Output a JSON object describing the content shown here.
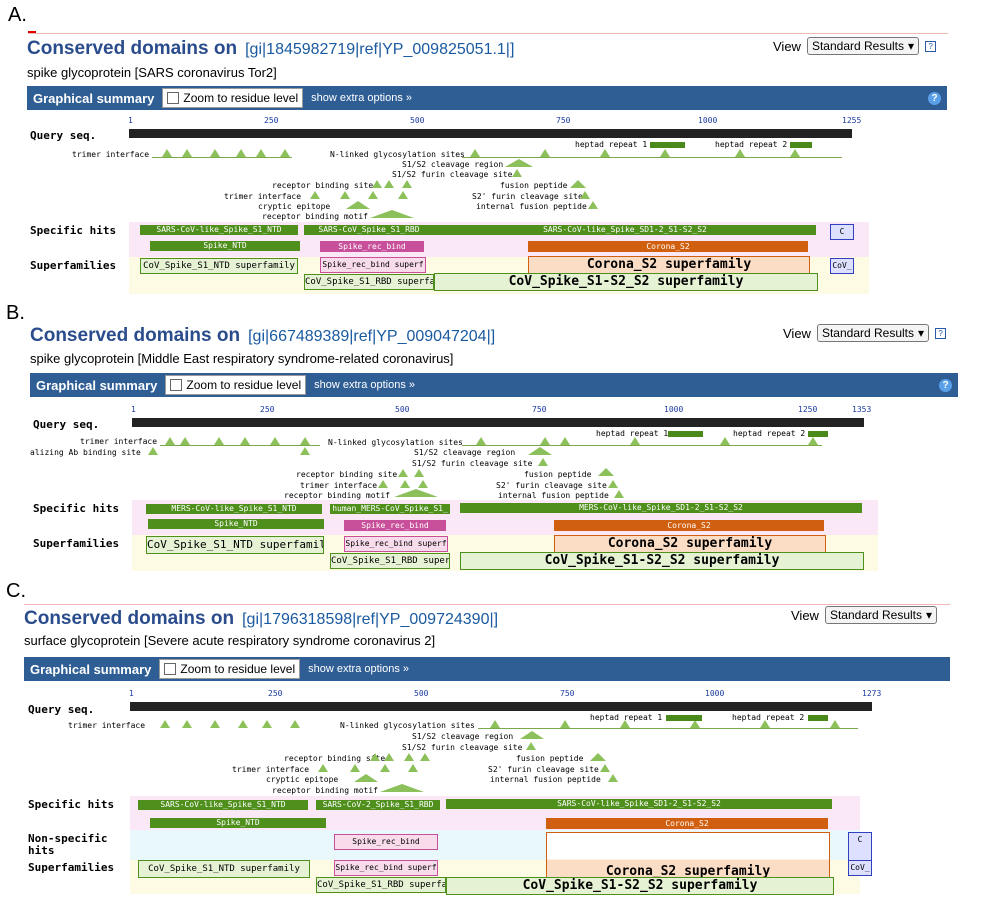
{
  "panels": [
    {
      "label": "A.",
      "title": "Conserved domains on",
      "gi": "[gi|1845982719|ref|YP_009825051.1|]",
      "subtitle": "spike glycoprotein [SARS coronavirus Tor2]",
      "view_label": "View",
      "view_value": "Standard Results",
      "graph_title": "Graphical summary",
      "zoom_label": "Zoom to residue level",
      "extra_label": "show extra options »",
      "query_label": "Query seq.",
      "ticks": [
        "1",
        "250",
        "500",
        "750",
        "1000",
        "1255"
      ],
      "specific_label": "Specific hits",
      "superfamilies_label": "Superfamilies",
      "features": {
        "trimer": "trimer interface",
        "nlinked": "N-linked glycosylation sites",
        "heptad1": "heptad repeat 1",
        "heptad2": "heptad repeat 2",
        "s1s2": "S1/S2 cleavage region",
        "furin": "S1/S2 furin cleavage site",
        "rbs": "receptor binding site",
        "fusion": "fusion peptide",
        "trimer2": "trimer interface",
        "s2p": "S2' furin cleavage site",
        "cryptic": "cryptic epitope",
        "internal": "internal fusion peptide",
        "rbm": "receptor binding motif"
      },
      "hits": {
        "ntd": "SARS-CoV-like_Spike_S1_NTD",
        "ntd2": "Spike_NTD",
        "rbd": "SARS-CoV_Spike_S1_RBD",
        "rec": "Spike_rec_bind",
        "sd": "SARS-CoV-like_Spike_SD1-2_S1-S2_S2",
        "corona": "Corona_S2",
        "c": "C"
      },
      "supers": {
        "ntdsf": "CoV_Spike_S1_NTD superfamily",
        "recsf": "Spike_rec_bind superf",
        "rbdsf": "CoV_Spike_S1_RBD superfami",
        "corsf": "Corona_S2 superfamily",
        "s2sf": "CoV_Spike_S1-S2_S2 superfamily",
        "cov": "CoV_"
      }
    },
    {
      "label": "B.",
      "title": "Conserved domains on",
      "gi": "[gi|667489389|ref|YP_009047204|]",
      "subtitle": "spike glycoprotein [Middle East respiratory syndrome-related coronavirus]",
      "view_label": "View",
      "view_value": "Standard Results",
      "graph_title": "Graphical summary",
      "zoom_label": "Zoom to residue level",
      "extra_label": "show extra options »",
      "query_label": "Query seq.",
      "ticks": [
        "1",
        "250",
        "500",
        "750",
        "1000",
        "1250",
        "1353"
      ],
      "specific_label": "Specific hits",
      "superfamilies_label": "Superfamilies",
      "features": {
        "trimer": "trimer interface",
        "nab": "alizing Ab binding site",
        "nlinked": "N-linked glycosylation sites",
        "heptad1": "heptad repeat 1",
        "heptad2": "heptad repeat 2",
        "s1s2": "S1/S2 cleavage region",
        "furin": "S1/S2 furin cleavage site",
        "rbs": "receptor binding site",
        "fusion": "fusion peptide",
        "trimer2": "trimer interface",
        "s2p": "S2' furin cleavage site",
        "rbm": "receptor binding motif",
        "internal": "internal fusion peptide"
      },
      "hits": {
        "ntd": "MERS-CoV-like_Spike_S1_NTD",
        "ntd2": "Spike_NTD",
        "rbd": "human_MERS-CoV_Spike_S1_",
        "rec": "Spike_rec_bind",
        "sd": "MERS-CoV-like_Spike_SD1-2_S1-S2_S2",
        "corona": "Corona_S2"
      },
      "supers": {
        "ntdsf": "CoV_Spike_S1_NTD superfamily",
        "recsf": "Spike_rec_bind superf",
        "rbdsf": "CoV_Spike_S1_RBD superfa",
        "corsf": "Corona_S2 superfamily",
        "s2sf": "CoV_Spike_S1-S2_S2 superfamily"
      }
    },
    {
      "label": "C.",
      "title": "Conserved domains on",
      "gi": "[gi|1796318598|ref|YP_009724390|]",
      "subtitle": "surface glycoprotein [Severe acute respiratory syndrome coronavirus 2]",
      "view_label": "View",
      "view_value": "Standard Results",
      "graph_title": "Graphical summary",
      "zoom_label": "Zoom to residue level",
      "extra_label": "show extra options »",
      "query_label": "Query seq.",
      "ticks": [
        "1",
        "250",
        "500",
        "750",
        "1000",
        "1273"
      ],
      "specific_label": "Specific hits",
      "nonspecific_label": "Non-specific hits",
      "superfamilies_label": "Superfamilies",
      "features": {
        "trimer": "trimer interface",
        "nlinked": "N-linked glycosylation sites",
        "heptad1": "heptad repeat 1",
        "heptad2": "heptad repeat 2",
        "s1s2": "S1/S2 cleavage region",
        "furin": "S1/S2 furin cleavage site",
        "rbs": "receptor binding site",
        "fusion": "fusion peptide",
        "trimer2": "trimer interface",
        "s2p": "S2' furin cleavage site",
        "cryptic": "cryptic epitope",
        "internal": "internal fusion peptide",
        "rbm": "receptor binding motif"
      },
      "hits": {
        "ntd": "SARS-CoV-like_Spike_S1_NTD",
        "ntd2": "Spike_NTD",
        "rbd": "SARS-CoV-2_Spike_S1_RBD",
        "rec": "Spike_rec_bind",
        "sd": "SARS-CoV-like_Spike_SD1-2_S1-S2_S2",
        "corona": "Corona_S2",
        "c": "C"
      },
      "supers": {
        "ntdsf": "CoV_Spike_S1_NTD superfamily",
        "recsf": "Spike_rec_bind superf",
        "rbdsf": "CoV_Spike_S1_RBD superfami",
        "corsf": "Corona_S2 superfamily",
        "s2sf": "CoV_Spike_S1-S2_S2 superfamily",
        "cov": "CoV_"
      }
    }
  ]
}
